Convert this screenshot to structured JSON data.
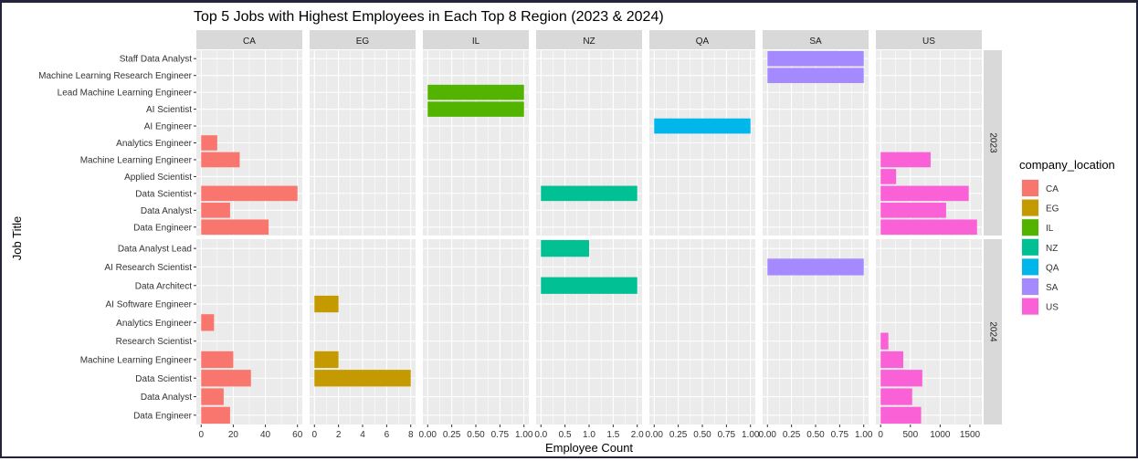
{
  "chart_data": {
    "type": "bar",
    "orientation": "horizontal",
    "title": "Top 5 Jobs with Highest Employees in Each Top 8 Region (2023 & 2024)",
    "xlabel": "Employee Count",
    "ylabel": "Job Title",
    "legend": {
      "title": "company_location",
      "placement": "right",
      "entries": [
        "CA",
        "EG",
        "IL",
        "NZ",
        "QA",
        "SA",
        "US"
      ]
    },
    "colors": {
      "CA": "#F8766D",
      "EG": "#C49A00",
      "IL": "#53B400",
      "NZ": "#00C094",
      "QA": "#00B6EB",
      "SA": "#A58AFF",
      "US": "#FB61D7"
    },
    "panel_background": "#EBEBEB",
    "strip_background": "#D9D9D9",
    "grid": true,
    "facet_columns": [
      "CA",
      "EG",
      "IL",
      "NZ",
      "QA",
      "SA",
      "US"
    ],
    "facet_rows": [
      {
        "label": "2023",
        "categories": [
          "Data Engineer",
          "Data Analyst",
          "Data Scientist",
          "Applied Scientist",
          "Machine Learning Engineer",
          "Analytics Engineer",
          "AI Engineer",
          "AI Scientist",
          "Lead Machine Learning Engineer",
          "Machine Learning Research Engineer",
          "Staff Data Analyst"
        ]
      },
      {
        "label": "2024",
        "categories": [
          "Data Engineer",
          "Data Analyst",
          "Data Scientist",
          "Machine Learning Engineer",
          "Research Scientist",
          "Analytics Engineer",
          "AI Software Engineer",
          "Data Architect",
          "AI Research Scientist",
          "Data Analyst Lead"
        ]
      }
    ],
    "x_axes": {
      "CA": {
        "xlim": [
          -3,
          63
        ],
        "ticks": [
          "0",
          "20",
          "40",
          "60"
        ],
        "tick_values": [
          0,
          20,
          40,
          60
        ]
      },
      "EG": {
        "xlim": [
          -0.4,
          8.4
        ],
        "ticks": [
          "0",
          "2",
          "4",
          "6",
          "8"
        ],
        "tick_values": [
          0,
          2,
          4,
          6,
          8
        ]
      },
      "IL": {
        "xlim": [
          -0.05,
          1.05
        ],
        "ticks": [
          "0.00",
          "0.25",
          "0.50",
          "0.75",
          "1.00"
        ],
        "tick_values": [
          0,
          0.25,
          0.5,
          0.75,
          1
        ]
      },
      "NZ": {
        "xlim": [
          -0.1,
          2.1
        ],
        "ticks": [
          "0.0",
          "0.5",
          "1.0",
          "1.5",
          "2.0"
        ],
        "tick_values": [
          0,
          0.5,
          1,
          1.5,
          2
        ]
      },
      "QA": {
        "xlim": [
          -0.05,
          1.05
        ],
        "ticks": [
          "0.00",
          "0.25",
          "0.50",
          "0.75",
          "1.00"
        ],
        "tick_values": [
          0,
          0.25,
          0.5,
          0.75,
          1
        ]
      },
      "SA": {
        "xlim": [
          -0.05,
          1.05
        ],
        "ticks": [
          "0.00",
          "0.25",
          "0.50",
          "0.75",
          "1.00"
        ],
        "tick_values": [
          0,
          0.25,
          0.5,
          0.75,
          1
        ]
      },
      "US": {
        "xlim": [
          -80,
          1700
        ],
        "ticks": [
          "0",
          "500",
          "1000",
          "1500"
        ],
        "tick_values": [
          0,
          500,
          1000,
          1500
        ]
      }
    },
    "bars": [
      {
        "year": "2023",
        "region": "CA",
        "job": "Data Scientist",
        "value": 60
      },
      {
        "year": "2023",
        "region": "CA",
        "job": "Data Engineer",
        "value": 42
      },
      {
        "year": "2023",
        "region": "CA",
        "job": "Machine Learning Engineer",
        "value": 24
      },
      {
        "year": "2023",
        "region": "CA",
        "job": "Data Analyst",
        "value": 18
      },
      {
        "year": "2023",
        "region": "CA",
        "job": "Analytics Engineer",
        "value": 10
      },
      {
        "year": "2023",
        "region": "IL",
        "job": "AI Scientist",
        "value": 1
      },
      {
        "year": "2023",
        "region": "IL",
        "job": "Lead Machine Learning Engineer",
        "value": 1
      },
      {
        "year": "2023",
        "region": "NZ",
        "job": "Data Scientist",
        "value": 2
      },
      {
        "year": "2023",
        "region": "QA",
        "job": "AI Engineer",
        "value": 1
      },
      {
        "year": "2023",
        "region": "SA",
        "job": "Staff Data Analyst",
        "value": 1
      },
      {
        "year": "2023",
        "region": "SA",
        "job": "Machine Learning Research Engineer",
        "value": 1
      },
      {
        "year": "2023",
        "region": "US",
        "job": "Data Engineer",
        "value": 1620
      },
      {
        "year": "2023",
        "region": "US",
        "job": "Data Scientist",
        "value": 1480
      },
      {
        "year": "2023",
        "region": "US",
        "job": "Data Analyst",
        "value": 1100
      },
      {
        "year": "2023",
        "region": "US",
        "job": "Machine Learning Engineer",
        "value": 840
      },
      {
        "year": "2023",
        "region": "US",
        "job": "Applied Scientist",
        "value": 260
      },
      {
        "year": "2024",
        "region": "CA",
        "job": "Data Scientist",
        "value": 31
      },
      {
        "year": "2024",
        "region": "CA",
        "job": "Machine Learning Engineer",
        "value": 20
      },
      {
        "year": "2024",
        "region": "CA",
        "job": "Data Engineer",
        "value": 18
      },
      {
        "year": "2024",
        "region": "CA",
        "job": "Data Analyst",
        "value": 14
      },
      {
        "year": "2024",
        "region": "CA",
        "job": "Analytics Engineer",
        "value": 8
      },
      {
        "year": "2024",
        "region": "EG",
        "job": "Data Scientist",
        "value": 8
      },
      {
        "year": "2024",
        "region": "EG",
        "job": "AI Software Engineer",
        "value": 2
      },
      {
        "year": "2024",
        "region": "EG",
        "job": "Machine Learning Engineer",
        "value": 2
      },
      {
        "year": "2024",
        "region": "NZ",
        "job": "Data Architect",
        "value": 2
      },
      {
        "year": "2024",
        "region": "NZ",
        "job": "Data Analyst Lead",
        "value": 1
      },
      {
        "year": "2024",
        "region": "SA",
        "job": "AI Research Scientist",
        "value": 1
      },
      {
        "year": "2024",
        "region": "US",
        "job": "Data Scientist",
        "value": 700
      },
      {
        "year": "2024",
        "region": "US",
        "job": "Data Engineer",
        "value": 680
      },
      {
        "year": "2024",
        "region": "US",
        "job": "Data Analyst",
        "value": 530
      },
      {
        "year": "2024",
        "region": "US",
        "job": "Machine Learning Engineer",
        "value": 380
      },
      {
        "year": "2024",
        "region": "US",
        "job": "Research Scientist",
        "value": 130
      }
    ]
  }
}
